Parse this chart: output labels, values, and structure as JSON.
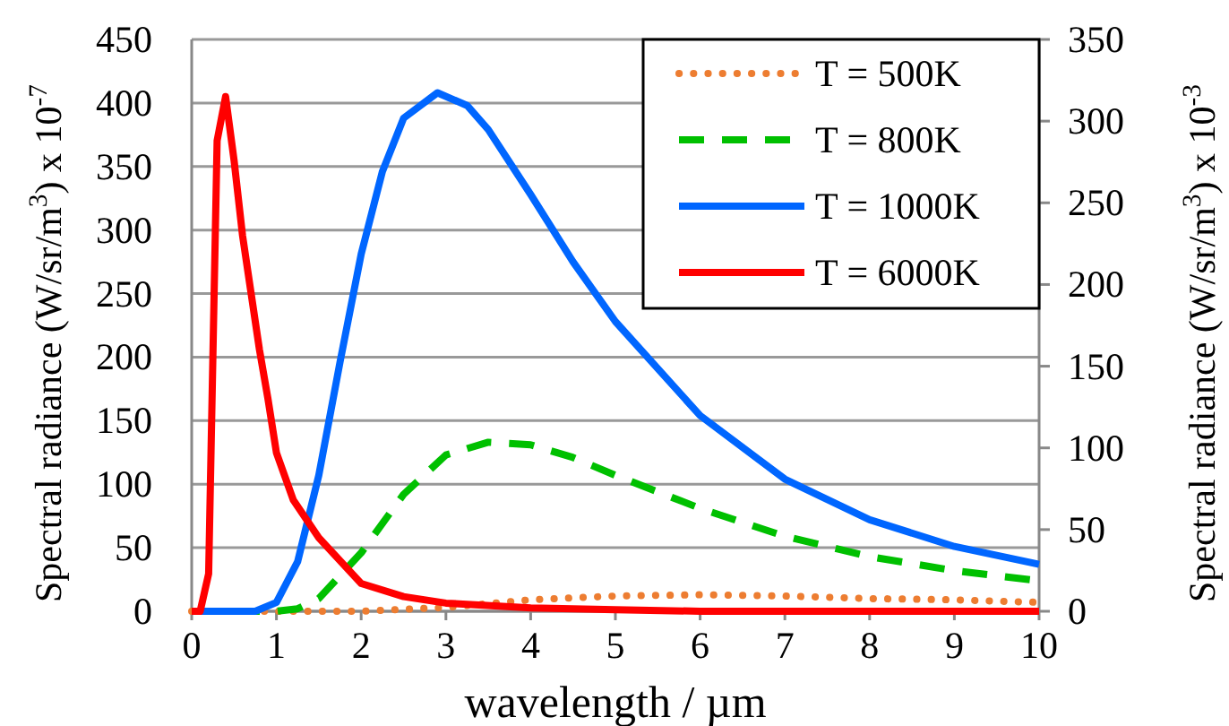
{
  "chart_data": {
    "type": "line",
    "xlabel": "wavelength / µm",
    "ylabel": "Spectral radiance (W/sr/m$^{3}$) x 10$^{-7}$",
    "y2label": "Spectral radiance (W/sr/m$^{3}$) x 10$^{-3}$",
    "xlim": [
      0,
      10
    ],
    "xticks": [
      0,
      1,
      2,
      3,
      4,
      5,
      6,
      7,
      8,
      9,
      10
    ],
    "ylim": [
      0,
      450
    ],
    "yticks": [
      0,
      50,
      100,
      150,
      200,
      250,
      300,
      350,
      400,
      450
    ],
    "y2lim": [
      0,
      350
    ],
    "y2ticks": [
      0,
      50,
      100,
      150,
      200,
      250,
      300,
      350
    ],
    "grid": "y",
    "legend": "top right",
    "series": [
      {
        "name": "T = 500K",
        "color": "#ed7d31",
        "line_style": "dotted",
        "x": [
          0,
          1,
          2,
          3,
          4,
          5,
          6,
          7,
          8,
          9,
          10
        ],
        "values": [
          0,
          0,
          0,
          3,
          9,
          12,
          13,
          12,
          10,
          9,
          7
        ]
      },
      {
        "name": "T = 800K",
        "color": "#00c000",
        "line_style": "dashed",
        "x": [
          0,
          1,
          1.25,
          1.5,
          2,
          2.5,
          3,
          3.5,
          4,
          4.5,
          5,
          6,
          7,
          8,
          9,
          10
        ],
        "values": [
          0,
          0,
          2,
          10,
          46,
          92,
          123,
          133,
          131,
          121,
          107,
          81,
          59,
          43,
          32,
          24
        ]
      },
      {
        "name": "T = 1000K",
        "color": "#0066ff",
        "line_style": "solid",
        "x": [
          0,
          0.75,
          1,
          1.25,
          1.5,
          1.75,
          2,
          2.25,
          2.5,
          2.9,
          3.25,
          3.5,
          4,
          4.5,
          5,
          6,
          7,
          8,
          9,
          10
        ],
        "values": [
          0,
          0,
          7,
          39,
          107,
          196,
          281,
          346,
          388,
          408,
          398,
          379,
          328,
          275,
          228,
          154,
          104,
          72,
          51,
          37
        ]
      },
      {
        "name": "T = 6000K",
        "color": "#ff0000",
        "line_style": "solid",
        "axis": "y2",
        "x": [
          0,
          0.1,
          0.2,
          0.3,
          0.4,
          0.5,
          0.6,
          0.7,
          0.8,
          0.9,
          1,
          1.2,
          1.5,
          2,
          2.5,
          3,
          4,
          5,
          6,
          8,
          10
        ],
        "values": [
          0,
          0,
          23,
          288,
          315,
          276,
          230,
          195,
          160,
          130,
          97,
          68,
          45,
          17,
          9,
          5,
          2,
          1,
          0,
          0,
          0
        ]
      }
    ]
  }
}
